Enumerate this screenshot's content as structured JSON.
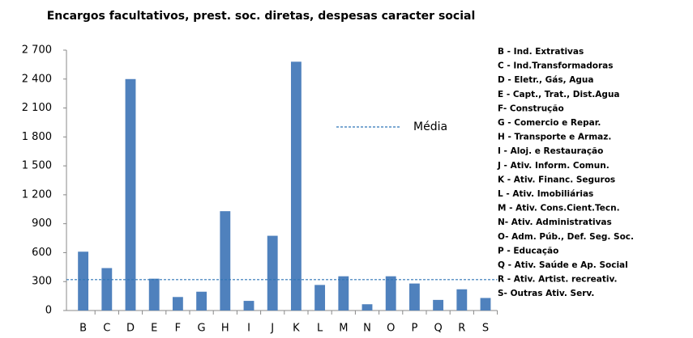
{
  "chart_data": {
    "type": "bar",
    "title": "Encargos facultativos, prest. soc. diretas, despesas caracter social",
    "categories": [
      "B",
      "C",
      "D",
      "E",
      "F",
      "G",
      "H",
      "I",
      "J",
      "K",
      "L",
      "M",
      "N",
      "O",
      "P",
      "Q",
      "R",
      "S"
    ],
    "values": [
      610,
      440,
      2400,
      330,
      140,
      195,
      1030,
      100,
      775,
      2580,
      265,
      355,
      65,
      355,
      280,
      110,
      220,
      130
    ],
    "color": "#4f81bd",
    "mean": {
      "name": "Média",
      "value": 320,
      "color": "#2e75b6"
    },
    "ylim": [
      0,
      2700
    ],
    "yticks": [
      0,
      300,
      600,
      900,
      {
        "value": 1200,
        "label": "1 200"
      },
      {
        "value": 1500,
        "label": "1 500"
      },
      {
        "value": 1800,
        "label": "1 800"
      },
      {
        "value": 2100,
        "label": "2 100"
      },
      {
        "value": 2400,
        "label": "2 400"
      },
      {
        "value": 2700,
        "label": "2 700"
      }
    ],
    "category_descriptions": [
      "B - Ind. Extrativas",
      "C - Ind.Transformadoras",
      "D - Eletr., Gás, Agua",
      "E - Capt., Trat., Dist.Agua",
      "F- Construção",
      "G -  Comercio e Repar.",
      "H -  Transporte e Armaz.",
      "I - Aloj. e Restauração",
      "J - Ativ. Inform. Comun.",
      "K - Ativ. Financ. Seguros",
      "L - Ativ. Imobiliárias",
      "M - Ativ. Cons.Cient.Tecn.",
      "N- Ativ. Administrativas",
      "O- Adm. Púb., Def. Seg. Soc.",
      "P - Educação",
      "Q - Ativ. Saúde e Ap. Social",
      "R - Ativ. Artist. recreativ.",
      "S- Outras Ativ. Serv."
    ]
  }
}
